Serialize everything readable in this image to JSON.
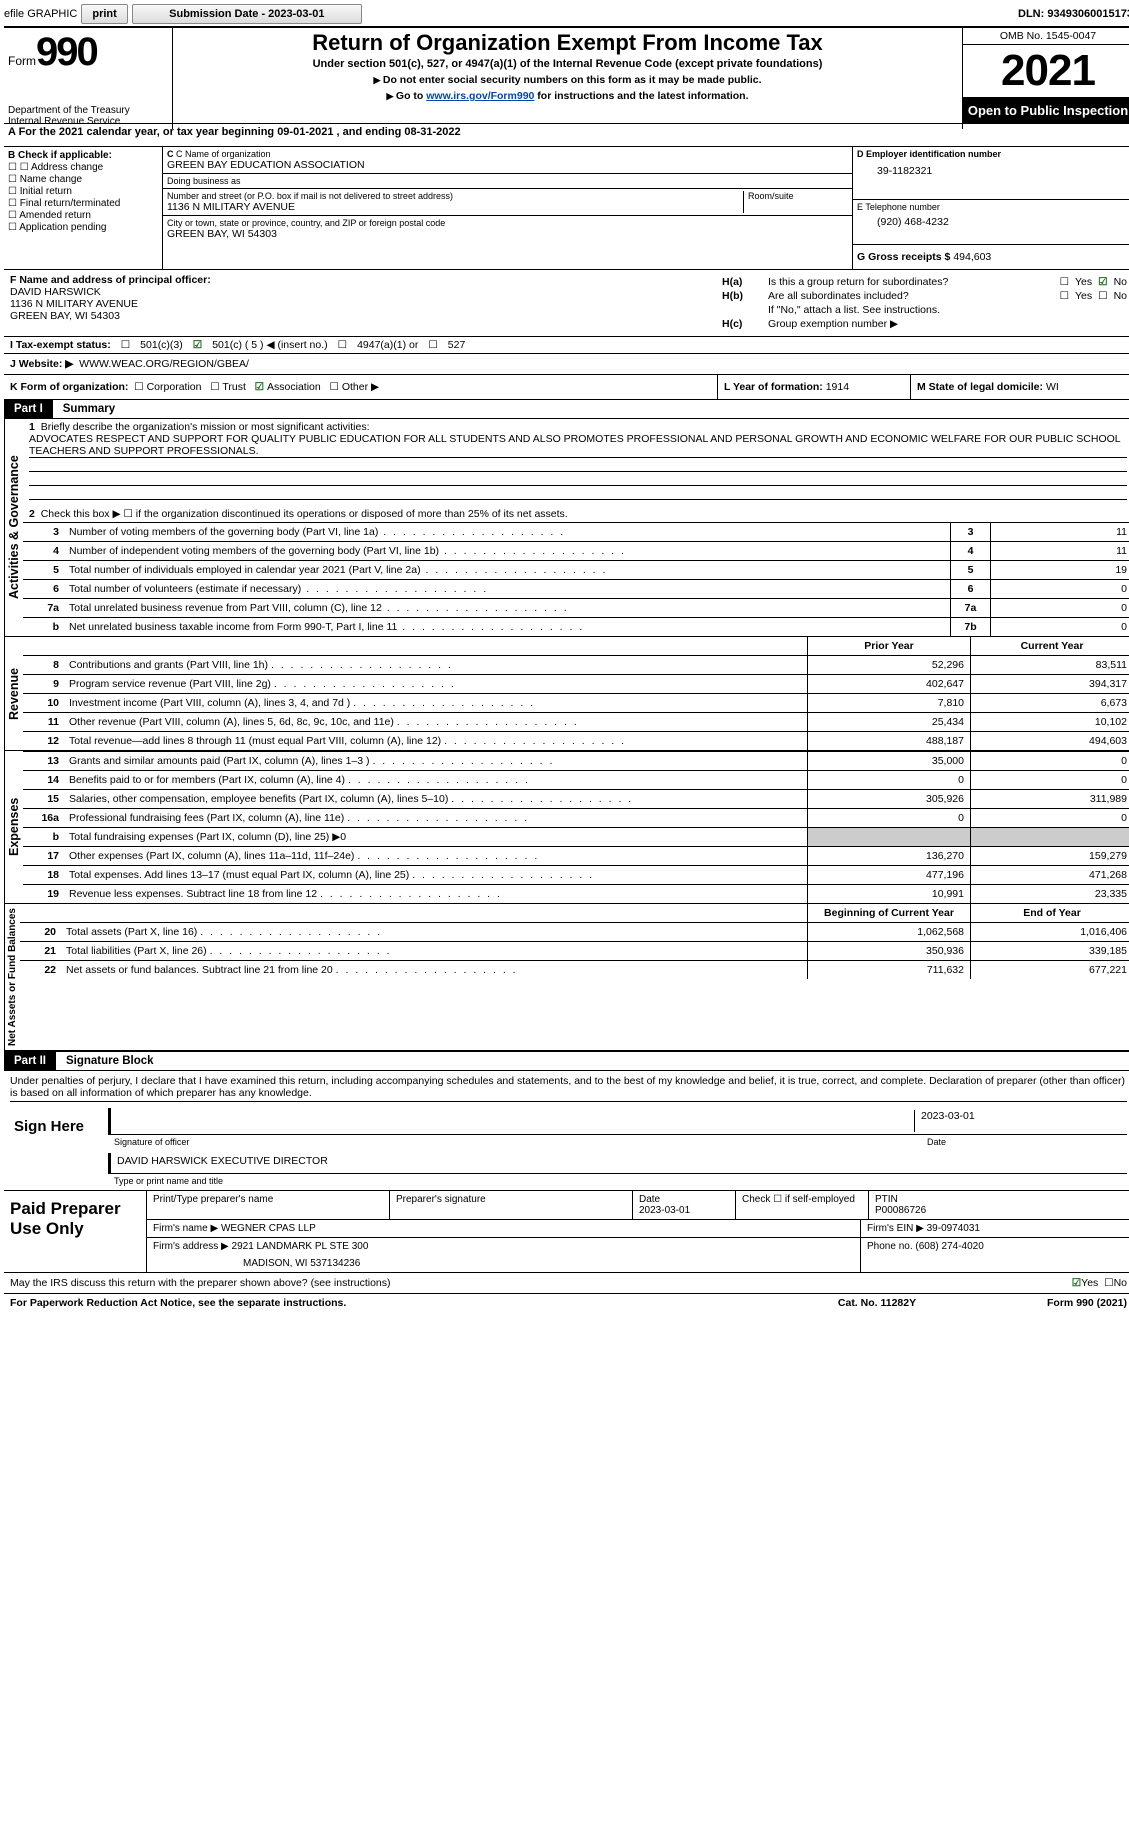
{
  "topbar": {
    "efile_label": "efile GRAPHIC",
    "print_btn": "print",
    "sub_date_label": "Submission Date - 2023-03-01",
    "dln": "DLN: 93493060015173"
  },
  "header": {
    "form_word": "Form",
    "form_num": "990",
    "dept": "Department of the Treasury\nInternal Revenue Service",
    "title": "Return of Organization Exempt From Income Tax",
    "sub": "Under section 501(c), 527, or 4947(a)(1) of the Internal Revenue Code (except private foundations)",
    "note1": "Do not enter social security numbers on this form as it may be made public.",
    "note2_pre": "Go to ",
    "note2_link": "www.irs.gov/Form990",
    "note2_post": " for instructions and the latest information.",
    "omb": "OMB No. 1545-0047",
    "year": "2021",
    "open_insp": "Open to Public Inspection"
  },
  "row_a": "A  For the 2021 calendar year, or tax year beginning 09-01-2021    , and ending 08-31-2022",
  "col_b": {
    "title": "B Check if applicable:",
    "opts": [
      "Address change",
      "Name change",
      "Initial return",
      "Final return/terminated",
      "Amended return",
      "Application pending"
    ]
  },
  "col_c": {
    "name_label": "C Name of organization",
    "name": "GREEN BAY EDUCATION ASSOCIATION",
    "dba_label": "Doing business as",
    "dba": "",
    "addr_label": "Number and street (or P.O. box if mail is not delivered to street address)",
    "addr": "1136 N MILITARY AVENUE",
    "room_label": "Room/suite",
    "room": "",
    "city_label": "City or town, state or province, country, and ZIP or foreign postal code",
    "city": "GREEN BAY, WI  54303"
  },
  "col_d": {
    "ein_label": "D Employer identification number",
    "ein": "39-1182321",
    "tel_label": "E Telephone number",
    "tel": "(920) 468-4232",
    "gross_label": "G Gross receipts $",
    "gross": "494,603"
  },
  "sec_f": {
    "f_label": "F Name and address of principal officer:",
    "f_name": "DAVID HARSWICK",
    "f_addr1": "1136 N MILITARY AVENUE",
    "f_addr2": "GREEN BAY, WI  54303",
    "ha_label": "H(a)",
    "ha_text": "Is this a group return for subordinates?",
    "ha_yes": "Yes",
    "ha_no": "No",
    "hb_label": "H(b)",
    "hb_text": "Are all subordinates included?",
    "hb_note": "If \"No,\" attach a list. See instructions.",
    "hc_label": "H(c)",
    "hc_text": "Group exemption number ▶"
  },
  "status": {
    "label": "I    Tax-exempt status:",
    "opt1": "501(c)(3)",
    "opt2": "501(c) ( 5 ) ◀ (insert no.)",
    "opt3": "4947(a)(1) or",
    "opt4": "527"
  },
  "website": {
    "label": "J   Website: ▶",
    "url": "WWW.WEAC.ORG/REGION/GBEA/"
  },
  "row_k": {
    "k_label": "K Form of organization:",
    "k_opts": [
      "Corporation",
      "Trust",
      "Association",
      "Other ▶"
    ],
    "l_label": "L Year of formation:",
    "l_val": "1914",
    "m_label": "M State of legal domicile:",
    "m_val": "WI"
  },
  "part1": {
    "hdr": "Part I",
    "title": "Summary",
    "tab_ag": "Activities & Governance",
    "tab_rev": "Revenue",
    "tab_exp": "Expenses",
    "tab_net": "Net Assets or Fund Balances",
    "q1_label": "1",
    "q1_text": "Briefly describe the organization's mission or most significant activities:",
    "q1_val": "ADVOCATES RESPECT AND SUPPORT FOR QUALITY PUBLIC EDUCATION FOR ALL STUDENTS AND ALSO PROMOTES PROFESSIONAL AND PERSONAL GROWTH AND ECONOMIC WELFARE FOR OUR PUBLIC SCHOOL TEACHERS AND SUPPORT PROFESSIONALS.",
    "q2_text": "Check this box ▶ ☐  if the organization discontinued its operations or disposed of more than 25% of its net assets.",
    "lines_ag": [
      {
        "n": "3",
        "t": "Number of voting members of the governing body (Part VI, line 1a)",
        "b": "3",
        "v": "11"
      },
      {
        "n": "4",
        "t": "Number of independent voting members of the governing body (Part VI, line 1b)",
        "b": "4",
        "v": "11"
      },
      {
        "n": "5",
        "t": "Total number of individuals employed in calendar year 2021 (Part V, line 2a)",
        "b": "5",
        "v": "19"
      },
      {
        "n": "6",
        "t": "Total number of volunteers (estimate if necessary)",
        "b": "6",
        "v": "0"
      },
      {
        "n": "7a",
        "t": "Total unrelated business revenue from Part VIII, column (C), line 12",
        "b": "7a",
        "v": "0"
      },
      {
        "n": "b",
        "t": "Net unrelated business taxable income from Form 990-T, Part I, line 11",
        "b": "7b",
        "v": "0"
      }
    ],
    "prior_hdr": "Prior Year",
    "curr_hdr": "Current Year",
    "lines_rev": [
      {
        "n": "8",
        "t": "Contributions and grants (Part VIII, line 1h)",
        "p": "52,296",
        "c": "83,511"
      },
      {
        "n": "9",
        "t": "Program service revenue (Part VIII, line 2g)",
        "p": "402,647",
        "c": "394,317"
      },
      {
        "n": "10",
        "t": "Investment income (Part VIII, column (A), lines 3, 4, and 7d )",
        "p": "7,810",
        "c": "6,673"
      },
      {
        "n": "11",
        "t": "Other revenue (Part VIII, column (A), lines 5, 6d, 8c, 9c, 10c, and 11e)",
        "p": "25,434",
        "c": "10,102"
      },
      {
        "n": "12",
        "t": "Total revenue—add lines 8 through 11 (must equal Part VIII, column (A), line 12)",
        "p": "488,187",
        "c": "494,603"
      }
    ],
    "lines_exp": [
      {
        "n": "13",
        "t": "Grants and similar amounts paid (Part IX, column (A), lines 1–3 )",
        "p": "35,000",
        "c": "0"
      },
      {
        "n": "14",
        "t": "Benefits paid to or for members (Part IX, column (A), line 4)",
        "p": "0",
        "c": "0"
      },
      {
        "n": "15",
        "t": "Salaries, other compensation, employee benefits (Part IX, column (A), lines 5–10)",
        "p": "305,926",
        "c": "311,989"
      },
      {
        "n": "16a",
        "t": "Professional fundraising fees (Part IX, column (A), line 11e)",
        "p": "0",
        "c": "0"
      },
      {
        "n": "b",
        "t": "Total fundraising expenses (Part IX, column (D), line 25) ▶0",
        "p": "",
        "c": "",
        "shaded": true
      },
      {
        "n": "17",
        "t": "Other expenses (Part IX, column (A), lines 11a–11d, 11f–24e)",
        "p": "136,270",
        "c": "159,279"
      },
      {
        "n": "18",
        "t": "Total expenses. Add lines 13–17 (must equal Part IX, column (A), line 25)",
        "p": "477,196",
        "c": "471,268"
      },
      {
        "n": "19",
        "t": "Revenue less expenses. Subtract line 18 from line 12",
        "p": "10,991",
        "c": "23,335"
      }
    ],
    "boy_hdr": "Beginning of Current Year",
    "eoy_hdr": "End of Year",
    "lines_net": [
      {
        "n": "20",
        "t": "Total assets (Part X, line 16)",
        "p": "1,062,568",
        "c": "1,016,406"
      },
      {
        "n": "21",
        "t": "Total liabilities (Part X, line 26)",
        "p": "350,936",
        "c": "339,185"
      },
      {
        "n": "22",
        "t": "Net assets or fund balances. Subtract line 21 from line 20",
        "p": "711,632",
        "c": "677,221"
      }
    ]
  },
  "part2": {
    "hdr": "Part II",
    "title": "Signature Block",
    "decl": "Under penalties of perjury, I declare that I have examined this return, including accompanying schedules and statements, and to the best of my knowledge and belief, it is true, correct, and complete. Declaration of preparer (other than officer) is based on all information of which preparer has any knowledge.",
    "sign_here": "Sign Here",
    "sig_officer": "Signature of officer",
    "sig_date": "2023-03-01",
    "date_lbl": "Date",
    "sig_name": "DAVID HARSWICK  EXECUTIVE DIRECTOR",
    "sig_name_lbl": "Type or print name and title",
    "paid": "Paid Preparer Use Only",
    "prep_name_lbl": "Print/Type preparer's name",
    "prep_sig_lbl": "Preparer's signature",
    "prep_date_lbl": "Date",
    "prep_date": "2023-03-01",
    "prep_self": "Check ☐ if self-employed",
    "ptin_lbl": "PTIN",
    "ptin": "P00086726",
    "firm_name_lbl": "Firm's name     ▶",
    "firm_name": "WEGNER CPAS LLP",
    "firm_ein_lbl": "Firm's EIN ▶",
    "firm_ein": "39-0974031",
    "firm_addr_lbl": "Firm's address ▶",
    "firm_addr1": "2921 LANDMARK PL STE 300",
    "firm_addr2": "MADISON, WI  537134236",
    "phone_lbl": "Phone no.",
    "phone": "(608) 274-4020"
  },
  "footer": {
    "discuss": "May the IRS discuss this return with the preparer shown above? (see instructions)",
    "yes": "Yes",
    "no": "No",
    "pra": "For Paperwork Reduction Act Notice, see the separate instructions.",
    "cat": "Cat. No. 11282Y",
    "form": "Form 990 (2021)"
  }
}
